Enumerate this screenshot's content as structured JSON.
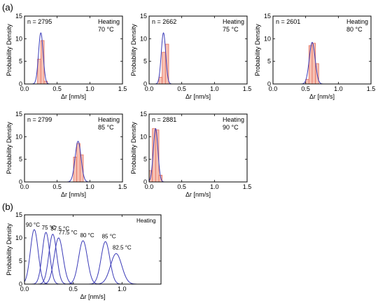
{
  "panel_labels": {
    "a": "(a)",
    "b": "(b)"
  },
  "colors": {
    "bar_fill": "#f7c2b4",
    "bar_stroke": "#e46f5f",
    "curve": "#3b3bb8",
    "axis": "#000000"
  },
  "chart_data": [
    {
      "type": "bar",
      "panel": "a",
      "index": 0,
      "title": "",
      "annotation_n": "n = 2795",
      "annotation_condition": [
        "Heating",
        "70 °C"
      ],
      "xlabel": "Δr [nm/s]",
      "ylabel": "Probability Density",
      "xlim": [
        0,
        1.5
      ],
      "ylim": [
        0,
        15
      ],
      "xticks": [
        0.0,
        0.5,
        1.0,
        1.5
      ],
      "xtick_labels": [
        "0.0",
        "0.5",
        "1.0",
        "1.5"
      ],
      "yticks": [
        0,
        5,
        10,
        15
      ],
      "ytick_labels": [
        "0",
        "5",
        "10",
        "15"
      ],
      "bins": [
        {
          "start": 0.2,
          "end": 0.25,
          "value": 5.5
        },
        {
          "start": 0.25,
          "end": 0.3,
          "value": 9.6
        },
        {
          "start": 0.3,
          "end": 0.35,
          "value": 0.6
        }
      ],
      "fit": {
        "mean": 0.25,
        "sd": 0.035,
        "peak": 11.3
      }
    },
    {
      "type": "bar",
      "panel": "a",
      "index": 1,
      "title": "",
      "annotation_n": "n = 2662",
      "annotation_condition": [
        "Heating",
        "75 °C"
      ],
      "xlabel": "Δr [nm/s]",
      "ylabel": "Probability Density",
      "xlim": [
        0,
        1.5
      ],
      "ylim": [
        0,
        15
      ],
      "xticks": [
        0.0,
        0.5,
        1.0,
        1.5
      ],
      "xtick_labels": [
        "0.0",
        "0.5",
        "1.0",
        "1.5"
      ],
      "yticks": [
        0,
        5,
        10,
        15
      ],
      "ytick_labels": [
        "0",
        "5",
        "10",
        "15"
      ],
      "bins": [
        {
          "start": 0.15,
          "end": 0.2,
          "value": 1.5
        },
        {
          "start": 0.2,
          "end": 0.25,
          "value": 7.0
        },
        {
          "start": 0.25,
          "end": 0.3,
          "value": 8.8
        }
      ],
      "fit": {
        "mean": 0.22,
        "sd": 0.034,
        "peak": 11.3
      }
    },
    {
      "type": "bar",
      "panel": "a",
      "index": 2,
      "title": "",
      "annotation_n": "n = 2601",
      "annotation_condition": [
        "Heating",
        "80 °C"
      ],
      "xlabel": "Δr [nm/s]",
      "ylabel": "Probability Density",
      "xlim": [
        0,
        1.5
      ],
      "ylim": [
        0,
        15
      ],
      "xticks": [
        0.0,
        0.5,
        1.0,
        1.5
      ],
      "xtick_labels": [
        "0.0",
        "0.5",
        "1.0",
        "1.5"
      ],
      "yticks": [
        0,
        5,
        10,
        15
      ],
      "ytick_labels": [
        "0",
        "5",
        "10",
        "15"
      ],
      "bins": [
        {
          "start": 0.5,
          "end": 0.55,
          "value": 1.0
        },
        {
          "start": 0.55,
          "end": 0.6,
          "value": 8.5
        },
        {
          "start": 0.6,
          "end": 0.65,
          "value": 9.0
        },
        {
          "start": 0.65,
          "end": 0.7,
          "value": 4.5
        }
      ],
      "fit": {
        "mean": 0.6,
        "sd": 0.045,
        "peak": 9.2
      }
    },
    {
      "type": "bar",
      "panel": "a",
      "index": 3,
      "title": "",
      "annotation_n": "n = 2799",
      "annotation_condition": [
        "Heating",
        "85 °C"
      ],
      "xlabel": "Δr [nm/s]",
      "ylabel": "Probability Density",
      "xlim": [
        0,
        1.5
      ],
      "ylim": [
        0,
        15
      ],
      "xticks": [
        0.0,
        0.5,
        1.0,
        1.5
      ],
      "xtick_labels": [
        "0.0",
        "0.5",
        "1.0",
        "1.5"
      ],
      "yticks": [
        0,
        5,
        10,
        15
      ],
      "ytick_labels": [
        "0",
        "5",
        "10",
        "15"
      ],
      "bins": [
        {
          "start": 0.75,
          "end": 0.8,
          "value": 5.5
        },
        {
          "start": 0.8,
          "end": 0.85,
          "value": 8.5
        },
        {
          "start": 0.85,
          "end": 0.9,
          "value": 6.0
        }
      ],
      "fit": {
        "mean": 0.82,
        "sd": 0.045,
        "peak": 9.0
      }
    },
    {
      "type": "bar",
      "panel": "a",
      "index": 4,
      "title": "",
      "annotation_n": "n = 2881",
      "annotation_condition": [
        "Heating",
        "90 °C"
      ],
      "xlabel": "Δr [nm/s]",
      "ylabel": "Probability Density",
      "xlim": [
        0,
        1.5
      ],
      "ylim": [
        0,
        15
      ],
      "xticks": [
        0.0,
        0.5,
        1.0,
        1.5
      ],
      "xtick_labels": [
        "0.0",
        "0.5",
        "1.0",
        "1.5"
      ],
      "yticks": [
        0,
        5,
        10,
        15
      ],
      "ytick_labels": [
        "0",
        "5",
        "10",
        "15"
      ],
      "bins": [
        {
          "start": 0.0,
          "end": 0.05,
          "value": 2.5
        },
        {
          "start": 0.05,
          "end": 0.1,
          "value": 11.8
        },
        {
          "start": 0.1,
          "end": 0.15,
          "value": 11.5
        },
        {
          "start": 0.15,
          "end": 0.2,
          "value": 1.5
        }
      ],
      "fit": {
        "mean": 0.1,
        "sd": 0.035,
        "peak": 11.8
      }
    },
    {
      "type": "line",
      "panel": "b",
      "title": "",
      "annotation_condition": "Heating",
      "xlabel": "Δr [nm/s]",
      "ylabel": "Probability Density",
      "xlim": [
        0,
        1.4
      ],
      "ylim": [
        0,
        15
      ],
      "xticks": [
        0.0,
        0.5,
        1.0
      ],
      "xtick_labels": [
        "0.0",
        "0.5",
        "1.0"
      ],
      "yticks": [
        0,
        5,
        10,
        15
      ],
      "ytick_labels": [
        "0",
        "5",
        "10",
        "15"
      ],
      "series": [
        {
          "name": "90 °C",
          "mean": 0.1,
          "sd": 0.04,
          "peak": 11.8
        },
        {
          "name": "75 °C",
          "mean": 0.22,
          "sd": 0.038,
          "peak": 11.2
        },
        {
          "name": "87.5 °C",
          "mean": 0.29,
          "sd": 0.04,
          "peak": 10.8
        },
        {
          "name": "77.5 °C",
          "mean": 0.35,
          "sd": 0.045,
          "peak": 10.0
        },
        {
          "name": "80 °C",
          "mean": 0.6,
          "sd": 0.045,
          "peak": 9.4
        },
        {
          "name": "85 °C",
          "mean": 0.83,
          "sd": 0.045,
          "peak": 9.2
        },
        {
          "name": "82.5 °C",
          "mean": 0.94,
          "sd": 0.058,
          "peak": 6.6
        }
      ]
    }
  ]
}
